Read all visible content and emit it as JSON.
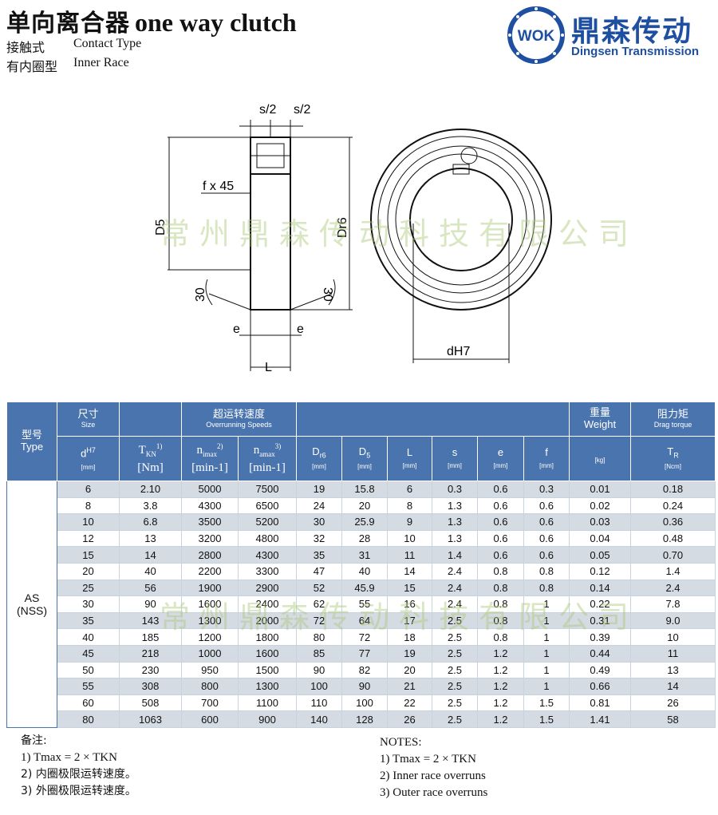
{
  "header": {
    "title_cn": "单向离合器",
    "title_en": "one way clutch",
    "line1_cn": "接触式",
    "line1_en": "Contact Type",
    "line2_cn": "有内圈型",
    "line2_en": "Inner Race"
  },
  "logo": {
    "badge": "WOK",
    "name_cn": "鼎森传动",
    "name_en": "Dingsen Transmission",
    "color": "#1e4fa0"
  },
  "watermark": "常州鼎森传动科技有限公司",
  "drawing": {
    "s_left": "s/2",
    "s_right": "s/2",
    "chamfer": "f x 45",
    "d5": "D5",
    "dr6": "Dr6",
    "angle_left": "30",
    "angle_right": "30",
    "e_left": "e",
    "e_right": "e",
    "length": "L",
    "bore": "dH7"
  },
  "table": {
    "h_type_cn": "型号",
    "h_type_en": "Type",
    "h_size_cn": "尺寸",
    "h_size_en": "Size",
    "h_speed_cn": "超运转速度",
    "h_speed_en": "Overrunning Speeds",
    "h_weight_cn": "重量",
    "h_weight_en": "Weight",
    "h_drag_cn": "阻力矩",
    "h_drag_en": "Drag torque",
    "cols": [
      {
        "sym": "d",
        "sup": "H7",
        "unit": "[mm]"
      },
      {
        "sym": "T",
        "sub": "KN",
        "sup": "1)",
        "unit": "[Nm]"
      },
      {
        "sym": "n",
        "sub": "imax",
        "sup": "2)",
        "unit": "[min-1]"
      },
      {
        "sym": "n",
        "sub": "amax",
        "sup": "3)",
        "unit": "[min-1]"
      },
      {
        "sym": "D",
        "sub": "r6",
        "unit": "[mm]"
      },
      {
        "sym": "D",
        "sub": "5",
        "unit": "[mm]"
      },
      {
        "sym": "L",
        "unit": "[mm]"
      },
      {
        "sym": "s",
        "unit": "[mm]"
      },
      {
        "sym": "e",
        "unit": "[mm]"
      },
      {
        "sym": "f",
        "unit": "[mm]"
      },
      {
        "sym": "",
        "unit": "[kg]"
      },
      {
        "sym": "T",
        "sub": "R",
        "unit": "[Ncm]"
      }
    ],
    "type_label": "AS",
    "type_label2": "(NSS)",
    "rows": [
      [
        "6",
        "2.10",
        "5000",
        "7500",
        "19",
        "15.8",
        "6",
        "0.3",
        "0.6",
        "0.3",
        "0.01",
        "0.18"
      ],
      [
        "8",
        "3.8",
        "4300",
        "6500",
        "24",
        "20",
        "8",
        "1.3",
        "0.6",
        "0.6",
        "0.02",
        "0.24"
      ],
      [
        "10",
        "6.8",
        "3500",
        "5200",
        "30",
        "25.9",
        "9",
        "1.3",
        "0.6",
        "0.6",
        "0.03",
        "0.36"
      ],
      [
        "12",
        "13",
        "3200",
        "4800",
        "32",
        "28",
        "10",
        "1.3",
        "0.6",
        "0.6",
        "0.04",
        "0.48"
      ],
      [
        "15",
        "14",
        "2800",
        "4300",
        "35",
        "31",
        "11",
        "1.4",
        "0.6",
        "0.6",
        "0.05",
        "0.70"
      ],
      [
        "20",
        "40",
        "2200",
        "3300",
        "47",
        "40",
        "14",
        "2.4",
        "0.8",
        "0.8",
        "0.12",
        "1.4"
      ],
      [
        "25",
        "56",
        "1900",
        "2900",
        "52",
        "45.9",
        "15",
        "2.4",
        "0.8",
        "0.8",
        "0.14",
        "2.4"
      ],
      [
        "30",
        "90",
        "1600",
        "2400",
        "62",
        "55",
        "16",
        "2.4",
        "0.8",
        "1",
        "0.22",
        "7.8"
      ],
      [
        "35",
        "143",
        "1300",
        "2000",
        "72",
        "64",
        "17",
        "2.5",
        "0.8",
        "1",
        "0.31",
        "9.0"
      ],
      [
        "40",
        "185",
        "1200",
        "1800",
        "80",
        "72",
        "18",
        "2.5",
        "0.8",
        "1",
        "0.39",
        "10"
      ],
      [
        "45",
        "218",
        "1000",
        "1600",
        "85",
        "77",
        "19",
        "2.5",
        "1.2",
        "1",
        "0.44",
        "11"
      ],
      [
        "50",
        "230",
        "950",
        "1500",
        "90",
        "82",
        "20",
        "2.5",
        "1.2",
        "1",
        "0.49",
        "13"
      ],
      [
        "55",
        "308",
        "800",
        "1300",
        "100",
        "90",
        "21",
        "2.5",
        "1.2",
        "1",
        "0.66",
        "14"
      ],
      [
        "60",
        "508",
        "700",
        "1100",
        "110",
        "100",
        "22",
        "2.5",
        "1.2",
        "1.5",
        "0.81",
        "26"
      ],
      [
        "80",
        "1063",
        "600",
        "900",
        "140",
        "128",
        "26",
        "2.5",
        "1.2",
        "1.5",
        "1.41",
        "58"
      ]
    ]
  },
  "notes_cn": {
    "title": "备注:",
    "n1": "1) Tmax = 2 × TKN",
    "n2": "2) 内圈极限运转速度。",
    "n3": "3) 外圈极限运转速度。"
  },
  "notes_en": {
    "title": "NOTES:",
    "n1": "1) Tmax = 2 × TKN",
    "n2": "2) Inner race overruns",
    "n3": "3) Outer race overruns"
  }
}
